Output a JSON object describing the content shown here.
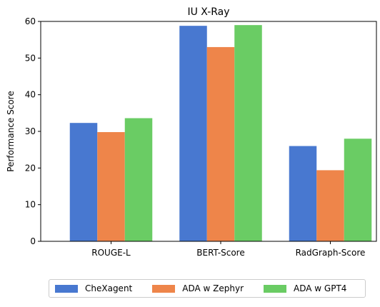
{
  "chart_data": {
    "type": "bar",
    "title": "IU X-Ray",
    "xlabel": "",
    "ylabel": "Performance Score",
    "ylim": [
      0,
      60
    ],
    "yticks": [
      0,
      10,
      20,
      30,
      40,
      50,
      60
    ],
    "categories": [
      "ROUGE-L",
      "BERT-Score",
      "RadGraph-Score"
    ],
    "series": [
      {
        "name": "CheXagent",
        "color": "#4878d0",
        "values": [
          32.3,
          58.8,
          26.0
        ]
      },
      {
        "name": "ADA w Zephyr",
        "color": "#ee854a",
        "values": [
          29.8,
          53.0,
          19.4
        ]
      },
      {
        "name": "ADA w GPT4",
        "color": "#6acc64",
        "values": [
          33.6,
          59.0,
          28.0
        ]
      }
    ],
    "grid": false,
    "legend": "bottom-center"
  }
}
